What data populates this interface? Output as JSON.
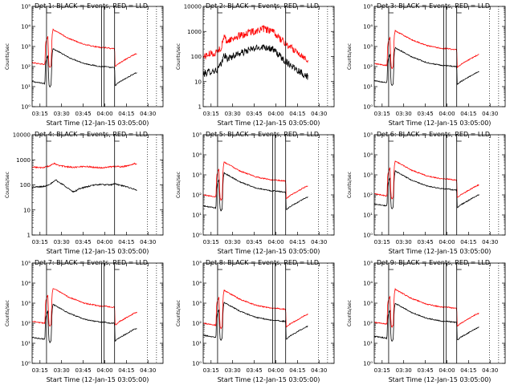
{
  "chart_data": [
    {
      "type": "line",
      "title": "Det 1: BLACK = Events, RED = LLD",
      "ylabel": "Counts/sec",
      "xlabel": "Start Time (12-Jan-15 03:05:00)",
      "yscale": "log",
      "ylim": [
        1,
        100000
      ],
      "ytick_labels": [
        "10⁰",
        "10¹",
        "10²",
        "10³",
        "10⁴",
        "10⁵"
      ],
      "xlim": [
        0,
        100
      ],
      "x_tick_labels": [
        "03:15",
        "03:30",
        "03:45",
        "04:00",
        "04:15",
        "04:30"
      ],
      "series": [
        {
          "name": "Events",
          "color": "#000000",
          "profile": "A",
          "shift": 0
        },
        {
          "name": "LLD",
          "color": "#ff0000",
          "profile": "A",
          "shift": 0.95
        }
      ]
    },
    {
      "type": "line",
      "title": "Det 2: BLACK = Events, RED = LLD",
      "ylabel": "Counts/sec",
      "xlabel": "Start Time (12-Jan-15 03:05:00)",
      "yscale": "log",
      "ylim": [
        1,
        10000
      ],
      "ytick_labels": [
        "1",
        "10",
        "100",
        "1000",
        "10000"
      ],
      "xlim": [
        0,
        100
      ],
      "x_tick_labels": [
        "03:15",
        "03:30",
        "03:45",
        "04:00",
        "04:15",
        "04:30"
      ],
      "series": [
        {
          "name": "Events",
          "color": "#000000",
          "profile": "B",
          "shift": 0
        },
        {
          "name": "LLD",
          "color": "#ff0000",
          "profile": "B",
          "shift": 0.7
        }
      ]
    },
    {
      "type": "line",
      "title": "Det 3: BLACK = Events, RED = LLD",
      "ylabel": "Counts/sec",
      "xlabel": "Start Time (12-Jan-15 03:05:00)",
      "yscale": "log",
      "ylim": [
        1,
        100000
      ],
      "ytick_labels": [
        "10⁰",
        "10¹",
        "10²",
        "10³",
        "10⁴",
        "10⁵"
      ],
      "xlim": [
        0,
        100
      ],
      "x_tick_labels": [
        "03:15",
        "03:30",
        "03:45",
        "04:00",
        "04:15",
        "04:30"
      ],
      "series": [
        {
          "name": "Events",
          "color": "#000000",
          "profile": "A",
          "shift": 0.05
        },
        {
          "name": "LLD",
          "color": "#ff0000",
          "profile": "A",
          "shift": 0.9
        }
      ]
    },
    {
      "type": "line",
      "title": "Det 4: BLACK = Events, RED = LLD",
      "ylabel": "Counts/sec",
      "xlabel": "Start Time (12-Jan-15 03:05:00)",
      "yscale": "log",
      "ylim": [
        1,
        10000
      ],
      "ytick_labels": [
        "1",
        "10",
        "100",
        "1000",
        "10000"
      ],
      "xlim": [
        0,
        100
      ],
      "x_tick_labels": [
        "03:15",
        "03:30",
        "03:45",
        "04:00",
        "04:15",
        "04:30"
      ],
      "series": [
        {
          "name": "Events",
          "color": "#000000",
          "profile": "C",
          "shift": 0
        },
        {
          "name": "LLD",
          "color": "#ff0000",
          "profile": "D",
          "shift": 0
        }
      ]
    },
    {
      "type": "line",
      "title": "Det 5: BLACK = Events, RED = LLD",
      "ylabel": "Counts/sec",
      "xlabel": "Start Time (12-Jan-15 03:05:00)",
      "yscale": "log",
      "ylim": [
        1,
        100000
      ],
      "ytick_labels": [
        "10⁰",
        "10¹",
        "10²",
        "10³",
        "10⁴",
        "10⁵"
      ],
      "xlim": [
        0,
        100
      ],
      "x_tick_labels": [
        "03:15",
        "03:30",
        "03:45",
        "04:00",
        "04:15",
        "04:30"
      ],
      "series": [
        {
          "name": "Events",
          "color": "#000000",
          "profile": "A",
          "shift": 0.2
        },
        {
          "name": "LLD",
          "color": "#ff0000",
          "profile": "A",
          "shift": 0.75
        }
      ]
    },
    {
      "type": "line",
      "title": "Det 6: BLACK = Events, RED = LLD",
      "ylabel": "Counts/sec",
      "xlabel": "Start Time (12-Jan-15 03:05:00)",
      "yscale": "log",
      "ylim": [
        1,
        100000
      ],
      "ytick_labels": [
        "10⁰",
        "10¹",
        "10²",
        "10³",
        "10⁴",
        "10⁵"
      ],
      "xlim": [
        0,
        100
      ],
      "x_tick_labels": [
        "03:15",
        "03:30",
        "03:45",
        "04:00",
        "04:15",
        "04:30"
      ],
      "series": [
        {
          "name": "Events",
          "color": "#000000",
          "profile": "A",
          "shift": 0.3
        },
        {
          "name": "LLD",
          "color": "#ff0000",
          "profile": "A",
          "shift": 0.8
        }
      ]
    },
    {
      "type": "line",
      "title": "Det 7: BLACK = Events, RED = LLD",
      "ylabel": "Counts/sec",
      "xlabel": "Start Time (12-Jan-15 03:05:00)",
      "yscale": "log",
      "ylim": [
        1,
        100000
      ],
      "ytick_labels": [
        "10⁰",
        "10¹",
        "10²",
        "10³",
        "10⁴",
        "10⁵"
      ],
      "xlim": [
        0,
        100
      ],
      "x_tick_labels": [
        "03:15",
        "03:30",
        "03:45",
        "04:00",
        "04:15",
        "04:30"
      ],
      "series": [
        {
          "name": "Events",
          "color": "#000000",
          "profile": "A",
          "shift": 0.05
        },
        {
          "name": "LLD",
          "color": "#ff0000",
          "profile": "A",
          "shift": 0.85
        }
      ]
    },
    {
      "type": "line",
      "title": "Det 8: BLACK = Events, RED = LLD",
      "ylabel": "Counts/sec",
      "xlabel": "Start Time (12-Jan-15 03:05:00)",
      "yscale": "log",
      "ylim": [
        1,
        100000
      ],
      "ytick_labels": [
        "10⁰",
        "10¹",
        "10²",
        "10³",
        "10⁴",
        "10⁵"
      ],
      "xlim": [
        0,
        100
      ],
      "x_tick_labels": [
        "03:15",
        "03:30",
        "03:45",
        "04:00",
        "04:15",
        "04:30"
      ],
      "series": [
        {
          "name": "Events",
          "color": "#000000",
          "profile": "A",
          "shift": 0.15
        },
        {
          "name": "LLD",
          "color": "#ff0000",
          "profile": "A",
          "shift": 0.75
        }
      ]
    },
    {
      "type": "line",
      "title": "Det 9: BLACK = Events, RED = LLD",
      "ylabel": "Counts/sec",
      "xlabel": "Start Time (12-Jan-15 03:05:00)",
      "yscale": "log",
      "ylim": [
        1,
        100000
      ],
      "ytick_labels": [
        "10⁰",
        "10¹",
        "10²",
        "10³",
        "10⁴",
        "10⁵"
      ],
      "xlim": [
        0,
        100
      ],
      "x_tick_labels": [
        "03:15",
        "03:30",
        "03:45",
        "04:00",
        "04:15",
        "04:30"
      ],
      "series": [
        {
          "name": "Events",
          "color": "#000000",
          "profile": "A",
          "shift": 0.1
        },
        {
          "name": "LLD",
          "color": "#ff0000",
          "profile": "A",
          "shift": 0.8
        }
      ]
    }
  ],
  "vertical_markers": {
    "solid_x": [
      11,
      53,
      55,
      63
    ],
    "dotted_x": [
      88,
      95
    ],
    "flag_x": [
      11,
      63
    ],
    "flag_color": "#000000",
    "dotted_color": "#000000"
  },
  "profiles": {
    "A": [
      [
        0,
        1.25
      ],
      [
        9.8,
        1.15
      ],
      [
        10.2,
        2.2
      ],
      [
        11.0,
        2.4
      ],
      [
        12.0,
        2.55
      ],
      [
        12.8,
        1.1
      ],
      [
        13.5,
        1.0
      ],
      [
        14.5,
        1.1
      ],
      [
        15.2,
        2.6
      ],
      [
        16.0,
        2.9
      ],
      [
        17.0,
        2.85
      ],
      [
        20,
        2.75
      ],
      [
        24,
        2.6
      ],
      [
        28,
        2.45
      ],
      [
        32,
        2.35
      ],
      [
        36,
        2.25
      ],
      [
        40,
        2.15
      ],
      [
        44,
        2.1
      ],
      [
        48,
        2.05
      ],
      [
        52,
        2.0
      ],
      [
        56,
        2.0
      ],
      [
        60,
        1.95
      ],
      [
        63,
        1.95
      ],
      [
        63.4,
        1.05
      ],
      [
        66,
        1.2
      ],
      [
        70,
        1.35
      ],
      [
        74,
        1.5
      ],
      [
        78,
        1.65
      ],
      [
        80,
        1.7
      ]
    ],
    "B": [
      [
        0,
        1.3
      ],
      [
        5,
        1.4
      ],
      [
        10,
        1.45
      ],
      [
        14,
        1.7
      ],
      [
        16,
        2.1
      ],
      [
        18,
        1.9
      ],
      [
        22,
        2.0
      ],
      [
        26,
        2.1
      ],
      [
        30,
        2.15
      ],
      [
        34,
        2.25
      ],
      [
        38,
        2.3
      ],
      [
        42,
        2.35
      ],
      [
        46,
        2.4
      ],
      [
        50,
        2.35
      ],
      [
        54,
        2.25
      ],
      [
        58,
        2.05
      ],
      [
        62,
        1.85
      ],
      [
        66,
        1.7
      ],
      [
        70,
        1.55
      ],
      [
        74,
        1.4
      ],
      [
        78,
        1.25
      ],
      [
        80,
        1.2
      ]
    ],
    "C": [
      [
        0,
        1.9
      ],
      [
        4,
        1.92
      ],
      [
        8,
        1.93
      ],
      [
        10,
        1.95
      ],
      [
        12,
        2.0
      ],
      [
        14,
        2.05
      ],
      [
        16,
        2.1
      ],
      [
        18,
        2.2
      ],
      [
        20,
        2.12
      ],
      [
        24,
        2.0
      ],
      [
        28,
        1.85
      ],
      [
        31,
        1.72
      ],
      [
        33,
        1.75
      ],
      [
        36,
        1.85
      ],
      [
        40,
        1.9
      ],
      [
        44,
        1.95
      ],
      [
        48,
        2.0
      ],
      [
        52,
        2.02
      ],
      [
        56,
        2.0
      ],
      [
        60,
        2.0
      ],
      [
        63,
        2.05
      ],
      [
        66,
        2.0
      ],
      [
        70,
        1.95
      ],
      [
        74,
        1.9
      ],
      [
        78,
        1.82
      ],
      [
        80,
        1.78
      ]
    ],
    "D": [
      [
        0,
        2.72
      ],
      [
        4,
        2.7
      ],
      [
        8,
        2.68
      ],
      [
        10,
        2.72
      ],
      [
        13,
        2.75
      ],
      [
        15,
        2.8
      ],
      [
        17,
        2.85
      ],
      [
        20,
        2.78
      ],
      [
        24,
        2.74
      ],
      [
        28,
        2.72
      ],
      [
        32,
        2.7
      ],
      [
        36,
        2.72
      ],
      [
        40,
        2.74
      ],
      [
        44,
        2.72
      ],
      [
        48,
        2.7
      ],
      [
        52,
        2.68
      ],
      [
        56,
        2.7
      ],
      [
        60,
        2.72
      ],
      [
        64,
        2.74
      ],
      [
        68,
        2.72
      ],
      [
        72,
        2.75
      ],
      [
        76,
        2.8
      ],
      [
        78,
        2.86
      ],
      [
        80,
        2.82
      ]
    ]
  }
}
